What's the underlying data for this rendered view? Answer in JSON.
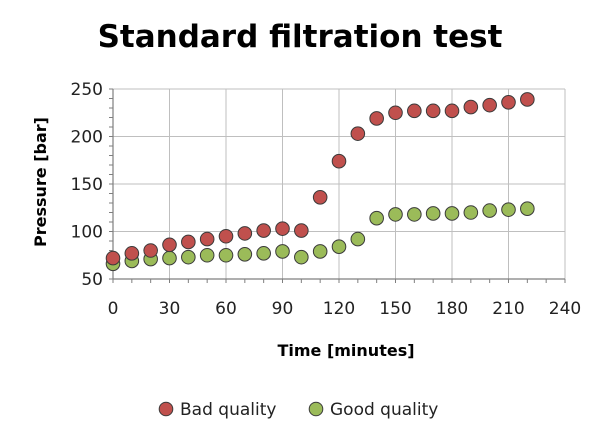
{
  "chart_data": {
    "type": "scatter",
    "title": "Standard filtration test",
    "xlabel": "Time [minutes]",
    "ylabel": "Pressure [bar]",
    "xlim": [
      0,
      240
    ],
    "ylim": [
      50,
      250
    ],
    "xticks": [
      0,
      30,
      60,
      90,
      120,
      150,
      180,
      210,
      240
    ],
    "yticks": [
      50,
      100,
      150,
      200,
      250
    ],
    "x_minor_step": 10,
    "y_minor_step": 10,
    "grid": true,
    "legend_position": "bottom",
    "series": [
      {
        "name": "Bad quality",
        "color": "#c0504d",
        "points": [
          [
            0,
            72
          ],
          [
            10,
            77
          ],
          [
            20,
            80
          ],
          [
            30,
            86
          ],
          [
            40,
            89
          ],
          [
            50,
            92
          ],
          [
            60,
            95
          ],
          [
            70,
            98
          ],
          [
            80,
            101
          ],
          [
            90,
            103
          ],
          [
            100,
            101
          ],
          [
            110,
            136
          ],
          [
            120,
            174
          ],
          [
            130,
            203
          ],
          [
            140,
            219
          ],
          [
            150,
            225
          ],
          [
            160,
            227
          ],
          [
            170,
            227
          ],
          [
            180,
            227
          ],
          [
            190,
            231
          ],
          [
            200,
            233
          ],
          [
            210,
            236
          ],
          [
            220,
            239
          ]
        ]
      },
      {
        "name": "Good quality",
        "color": "#9bbb59",
        "points": [
          [
            0,
            66
          ],
          [
            10,
            69
          ],
          [
            20,
            71
          ],
          [
            30,
            72
          ],
          [
            40,
            73
          ],
          [
            50,
            75
          ],
          [
            60,
            75
          ],
          [
            70,
            76
          ],
          [
            80,
            77
          ],
          [
            90,
            79
          ],
          [
            100,
            73
          ],
          [
            110,
            79
          ],
          [
            120,
            84
          ],
          [
            130,
            92
          ],
          [
            140,
            114
          ],
          [
            150,
            118
          ],
          [
            160,
            118
          ],
          [
            170,
            119
          ],
          [
            180,
            119
          ],
          [
            190,
            120
          ],
          [
            200,
            122
          ],
          [
            210,
            123
          ],
          [
            220,
            124
          ]
        ]
      }
    ]
  }
}
